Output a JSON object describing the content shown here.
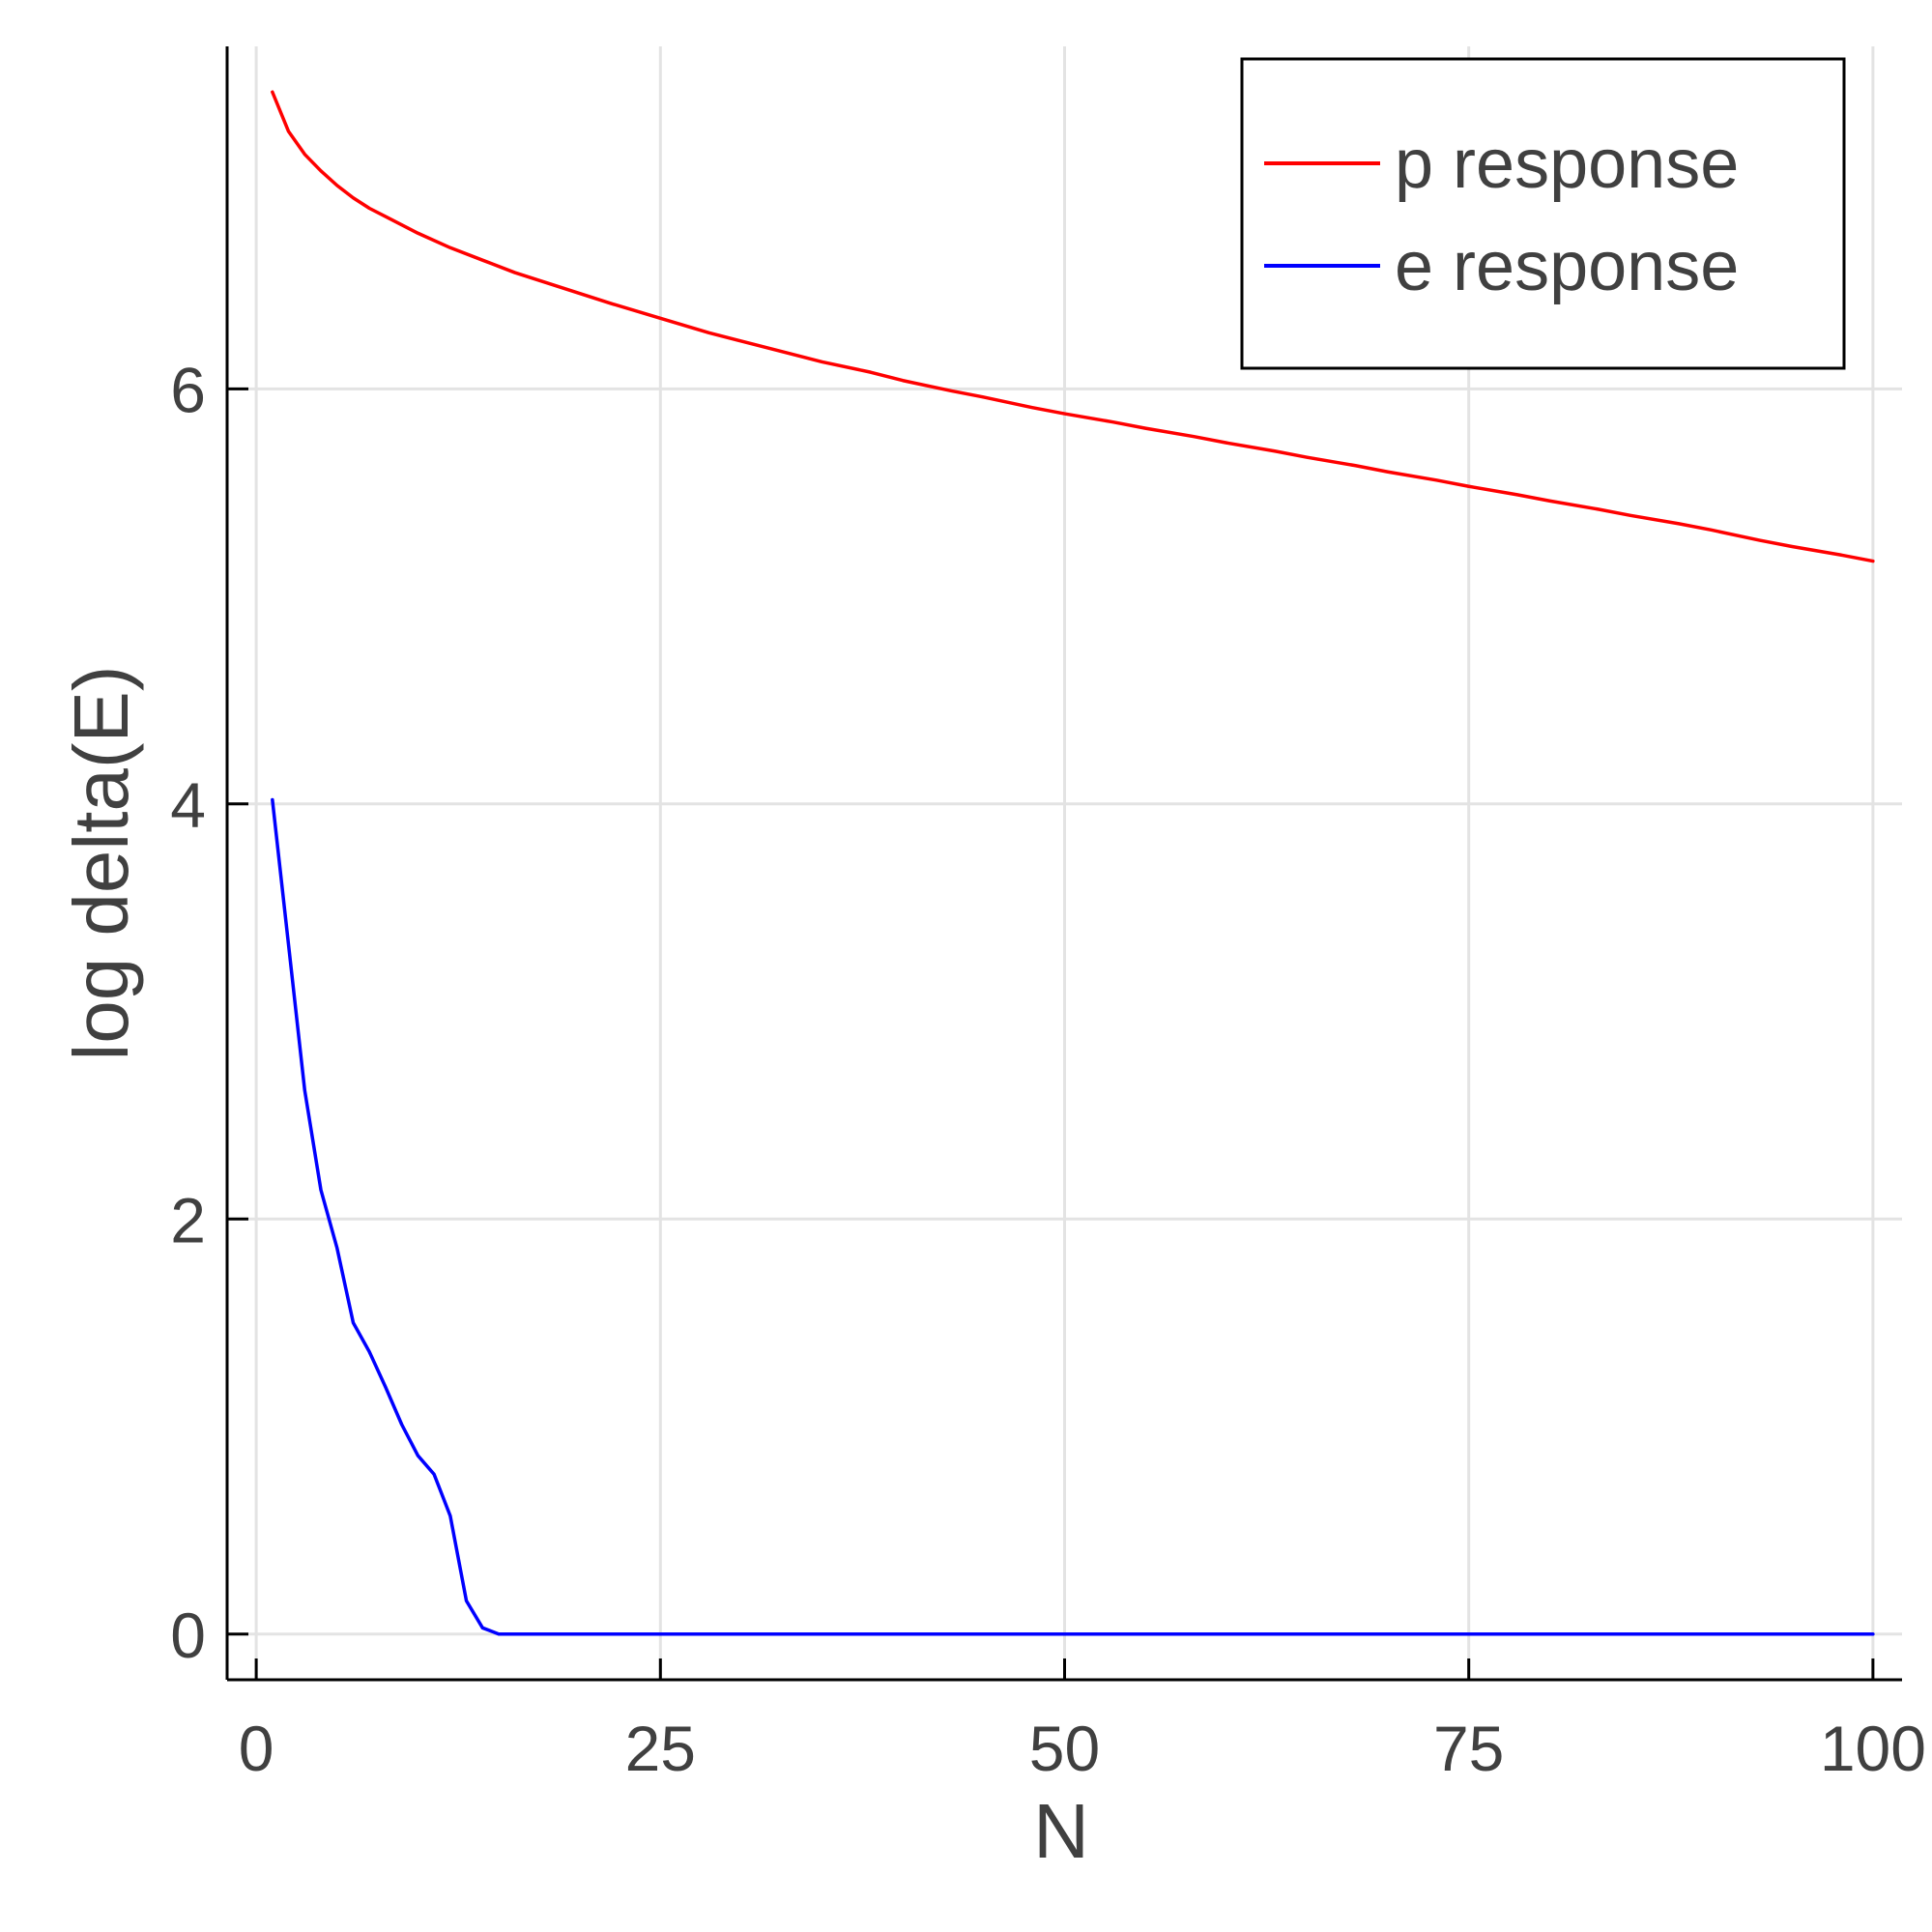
{
  "chart_data": {
    "type": "line",
    "title": "",
    "xlabel": "N",
    "ylabel": "log delta(E)",
    "xlim": [
      -1.8,
      101.8
    ],
    "ylim": [
      -0.22,
      7.65
    ],
    "xticks": [
      0,
      25,
      50,
      75,
      100
    ],
    "yticks": [
      0,
      2,
      4,
      6
    ],
    "grid": true,
    "legend_position": "top-right",
    "colors": {
      "p_response": "#ff0000",
      "e_response": "#0000ff",
      "grid": "#e3e3e3",
      "text": "#404040",
      "axis": "#000000"
    },
    "series": [
      {
        "name": "p response",
        "color": "#ff0000",
        "x": [
          1,
          2,
          3,
          4,
          5,
          6,
          7,
          8,
          9,
          10,
          12,
          14,
          16,
          18,
          20,
          22,
          25,
          28,
          30,
          33,
          35,
          38,
          40,
          43,
          45,
          48,
          50,
          53,
          55,
          58,
          60,
          63,
          65,
          68,
          70,
          73,
          75,
          78,
          80,
          83,
          85,
          88,
          90,
          93,
          95,
          98,
          100
        ],
        "y": [
          7.43,
          7.24,
          7.13,
          7.05,
          6.98,
          6.92,
          6.87,
          6.83,
          6.79,
          6.75,
          6.68,
          6.62,
          6.56,
          6.51,
          6.46,
          6.41,
          6.34,
          6.27,
          6.23,
          6.17,
          6.13,
          6.08,
          6.04,
          5.99,
          5.96,
          5.91,
          5.88,
          5.84,
          5.81,
          5.77,
          5.74,
          5.7,
          5.67,
          5.63,
          5.6,
          5.56,
          5.53,
          5.49,
          5.46,
          5.42,
          5.39,
          5.35,
          5.32,
          5.27,
          5.24,
          5.2,
          5.17
        ]
      },
      {
        "name": "e response",
        "color": "#0000ff",
        "x": [
          1,
          2,
          3,
          4,
          5,
          6,
          7,
          8,
          9,
          10,
          11,
          12,
          13,
          14,
          15,
          16,
          20,
          30,
          40,
          50,
          60,
          70,
          80,
          90,
          100
        ],
        "y": [
          4.02,
          3.32,
          2.62,
          2.14,
          1.86,
          1.5,
          1.36,
          1.19,
          1.01,
          0.86,
          0.77,
          0.57,
          0.16,
          0.03,
          0.0,
          0.0,
          0.0,
          0.0,
          0.0,
          0.0,
          0.0,
          0.0,
          0.0,
          0.0,
          0.0
        ]
      }
    ]
  }
}
